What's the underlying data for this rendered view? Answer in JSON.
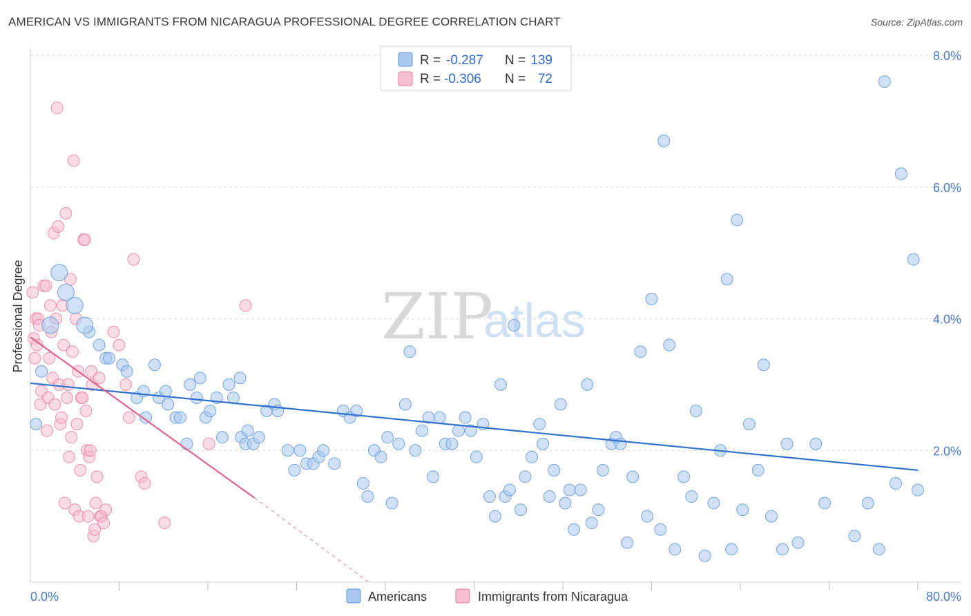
{
  "title": "AMERICAN VS IMMIGRANTS FROM NICARAGUA PROFESSIONAL DEGREE CORRELATION CHART",
  "source": "Source: ZipAtlas.com",
  "watermark": {
    "zip": "ZIP",
    "atlas": "atlas"
  },
  "legend": {
    "rows": [
      {
        "r_label": "R =",
        "r_value": "-0.287",
        "n_label": "N =",
        "n_value": "139"
      },
      {
        "r_label": "R =",
        "r_value": "-0.306",
        "n_label": "N =",
        "n_value": "72"
      }
    ]
  },
  "bottom_legend": [
    "Americans",
    "Immigrants from Nicaragua"
  ],
  "colors": {
    "americans_fill": "#a9c8ee",
    "americans_stroke": "#5f95d8",
    "americans_line": "#2f6fcf",
    "nicaragua_fill": "#f6bfd0",
    "nicaragua_stroke": "#e8799c",
    "nicaragua_line": "#e0628f",
    "grid": "#d9d9d9",
    "tick_text": "#4a7cc9"
  },
  "chart_data": {
    "type": "scatter",
    "title": "AMERICAN VS IMMIGRANTS FROM NICARAGUA PROFESSIONAL DEGREE CORRELATION CHART",
    "xlabel": "",
    "ylabel": "Professional Degree",
    "xlim": [
      0,
      80
    ],
    "ylim": [
      0,
      8
    ],
    "x_tick_labels": [
      "0.0%",
      "80.0%"
    ],
    "y_ticks": [
      2,
      4,
      6,
      8
    ],
    "y_tick_labels": [
      "2.0%",
      "4.0%",
      "6.0%",
      "8.0%"
    ],
    "grid": true,
    "series": [
      {
        "name": "Americans",
        "r": -0.287,
        "n": 139,
        "trend": {
          "x": [
            0,
            80
          ],
          "y": [
            3.02,
            1.7
          ]
        },
        "points": [
          [
            0.5,
            2.4
          ],
          [
            1.0,
            3.2
          ],
          [
            1.8,
            3.9
          ],
          [
            2.6,
            4.7
          ],
          [
            3.2,
            4.4
          ],
          [
            4.0,
            4.2
          ],
          [
            5.3,
            3.8
          ],
          [
            6.2,
            3.6
          ],
          [
            6.8,
            3.4
          ],
          [
            4.9,
            3.9
          ],
          [
            7.1,
            3.4
          ],
          [
            8.3,
            3.3
          ],
          [
            8.7,
            3.2
          ],
          [
            9.6,
            2.8
          ],
          [
            10.2,
            2.9
          ],
          [
            10.4,
            2.5
          ],
          [
            11.2,
            3.3
          ],
          [
            11.6,
            2.8
          ],
          [
            12.2,
            2.9
          ],
          [
            12.4,
            2.7
          ],
          [
            13.1,
            2.5
          ],
          [
            13.5,
            2.5
          ],
          [
            14.1,
            2.1
          ],
          [
            14.4,
            3.0
          ],
          [
            15.0,
            2.8
          ],
          [
            15.3,
            3.1
          ],
          [
            15.8,
            2.5
          ],
          [
            16.2,
            2.6
          ],
          [
            16.8,
            2.8
          ],
          [
            17.3,
            2.2
          ],
          [
            17.9,
            3.0
          ],
          [
            18.3,
            2.8
          ],
          [
            18.9,
            3.1
          ],
          [
            19.0,
            2.2
          ],
          [
            19.4,
            2.1
          ],
          [
            19.6,
            2.3
          ],
          [
            20.1,
            2.1
          ],
          [
            20.6,
            2.2
          ],
          [
            21.3,
            2.6
          ],
          [
            22.0,
            2.7
          ],
          [
            22.3,
            2.6
          ],
          [
            23.2,
            2.0
          ],
          [
            23.8,
            1.7
          ],
          [
            24.3,
            2.0
          ],
          [
            24.9,
            1.8
          ],
          [
            25.5,
            1.8
          ],
          [
            26.0,
            1.9
          ],
          [
            26.4,
            2.0
          ],
          [
            27.4,
            1.8
          ],
          [
            28.2,
            2.6
          ],
          [
            28.8,
            2.5
          ],
          [
            29.4,
            2.6
          ],
          [
            30.0,
            1.5
          ],
          [
            30.4,
            1.3
          ],
          [
            31.0,
            2.0
          ],
          [
            31.6,
            1.9
          ],
          [
            32.2,
            2.2
          ],
          [
            32.6,
            1.2
          ],
          [
            33.2,
            2.1
          ],
          [
            33.8,
            2.7
          ],
          [
            34.2,
            3.5
          ],
          [
            34.7,
            2.0
          ],
          [
            35.3,
            2.3
          ],
          [
            35.9,
            2.5
          ],
          [
            36.3,
            1.6
          ],
          [
            36.9,
            2.5
          ],
          [
            37.4,
            2.1
          ],
          [
            38.0,
            2.1
          ],
          [
            38.6,
            2.3
          ],
          [
            39.2,
            2.5
          ],
          [
            39.7,
            2.3
          ],
          [
            40.2,
            1.9
          ],
          [
            40.8,
            2.4
          ],
          [
            41.4,
            1.3
          ],
          [
            41.9,
            1.0
          ],
          [
            42.4,
            3.0
          ],
          [
            42.8,
            1.3
          ],
          [
            43.2,
            1.4
          ],
          [
            43.6,
            3.9
          ],
          [
            44.2,
            1.1
          ],
          [
            44.6,
            1.6
          ],
          [
            45.2,
            1.9
          ],
          [
            45.9,
            2.4
          ],
          [
            46.2,
            2.1
          ],
          [
            46.8,
            1.3
          ],
          [
            47.2,
            1.7
          ],
          [
            47.8,
            2.7
          ],
          [
            48.2,
            1.2
          ],
          [
            48.6,
            1.4
          ],
          [
            49.0,
            0.8
          ],
          [
            49.6,
            1.4
          ],
          [
            50.2,
            3.0
          ],
          [
            50.6,
            0.9
          ],
          [
            51.2,
            1.1
          ],
          [
            51.6,
            1.7
          ],
          [
            52.4,
            2.1
          ],
          [
            52.8,
            2.2
          ],
          [
            53.2,
            2.1
          ],
          [
            53.8,
            0.6
          ],
          [
            54.3,
            1.6
          ],
          [
            55.0,
            3.5
          ],
          [
            55.6,
            1.0
          ],
          [
            56.0,
            4.3
          ],
          [
            56.8,
            0.8
          ],
          [
            57.1,
            6.7
          ],
          [
            57.6,
            3.6
          ],
          [
            58.1,
            0.5
          ],
          [
            58.9,
            1.6
          ],
          [
            59.6,
            1.3
          ],
          [
            60.0,
            2.6
          ],
          [
            60.8,
            0.4
          ],
          [
            61.6,
            1.2
          ],
          [
            62.2,
            2.0
          ],
          [
            62.8,
            4.6
          ],
          [
            63.2,
            0.5
          ],
          [
            63.7,
            5.5
          ],
          [
            64.2,
            1.1
          ],
          [
            64.8,
            2.4
          ],
          [
            65.6,
            1.7
          ],
          [
            66.1,
            3.3
          ],
          [
            66.8,
            1.0
          ],
          [
            67.8,
            0.5
          ],
          [
            68.2,
            2.1
          ],
          [
            69.2,
            0.6
          ],
          [
            70.8,
            2.1
          ],
          [
            71.6,
            1.2
          ],
          [
            74.3,
            0.7
          ],
          [
            75.5,
            1.2
          ],
          [
            76.5,
            0.5
          ],
          [
            77.0,
            7.6
          ],
          [
            78.0,
            1.5
          ],
          [
            78.5,
            6.2
          ],
          [
            79.6,
            4.9
          ],
          [
            80.0,
            1.4
          ]
        ]
      },
      {
        "name": "Immigrants from Nicaragua",
        "r": -0.306,
        "n": 72,
        "trend": {
          "x": [
            0,
            20.2
          ],
          "y": [
            3.72,
            1.28
          ]
        },
        "trend_dashed": {
          "x": [
            20.2,
            30.5
          ],
          "y": [
            1.28,
            0.0
          ]
        },
        "points": [
          [
            0.2,
            4.4
          ],
          [
            0.3,
            3.7
          ],
          [
            0.4,
            3.4
          ],
          [
            0.5,
            4.0
          ],
          [
            0.6,
            3.6
          ],
          [
            0.7,
            4.0
          ],
          [
            0.8,
            3.9
          ],
          [
            0.9,
            2.7
          ],
          [
            1.0,
            2.9
          ],
          [
            1.2,
            4.5
          ],
          [
            1.4,
            4.5
          ],
          [
            1.5,
            2.3
          ],
          [
            1.6,
            2.8
          ],
          [
            1.7,
            3.4
          ],
          [
            1.8,
            4.2
          ],
          [
            1.9,
            3.8
          ],
          [
            2.0,
            3.1
          ],
          [
            2.1,
            5.3
          ],
          [
            2.2,
            2.7
          ],
          [
            2.3,
            4.0
          ],
          [
            2.4,
            7.2
          ],
          [
            2.5,
            5.4
          ],
          [
            2.6,
            3.0
          ],
          [
            2.7,
            2.4
          ],
          [
            2.8,
            2.5
          ],
          [
            2.9,
            4.2
          ],
          [
            3.0,
            3.6
          ],
          [
            3.1,
            1.2
          ],
          [
            3.2,
            5.6
          ],
          [
            3.3,
            2.8
          ],
          [
            3.4,
            3.0
          ],
          [
            3.5,
            1.9
          ],
          [
            3.6,
            4.6
          ],
          [
            3.7,
            2.2
          ],
          [
            3.8,
            3.5
          ],
          [
            3.9,
            6.4
          ],
          [
            4.0,
            1.1
          ],
          [
            4.1,
            4.0
          ],
          [
            4.2,
            2.4
          ],
          [
            4.3,
            3.2
          ],
          [
            4.4,
            1.0
          ],
          [
            4.5,
            1.7
          ],
          [
            4.6,
            2.8
          ],
          [
            4.7,
            2.8
          ],
          [
            4.8,
            5.2
          ],
          [
            4.9,
            5.2
          ],
          [
            5.0,
            2.6
          ],
          [
            5.1,
            2.0
          ],
          [
            5.2,
            1.0
          ],
          [
            5.3,
            1.9
          ],
          [
            5.4,
            2.0
          ],
          [
            5.5,
            3.2
          ],
          [
            5.6,
            3.0
          ],
          [
            5.7,
            0.7
          ],
          [
            5.8,
            0.8
          ],
          [
            5.9,
            1.2
          ],
          [
            6.0,
            1.6
          ],
          [
            6.2,
            3.1
          ],
          [
            6.3,
            1.0
          ],
          [
            6.4,
            1.0
          ],
          [
            6.6,
            0.9
          ],
          [
            6.8,
            1.1
          ],
          [
            7.5,
            3.8
          ],
          [
            8.0,
            3.6
          ],
          [
            8.6,
            3.0
          ],
          [
            8.9,
            2.5
          ],
          [
            9.3,
            4.9
          ],
          [
            10.0,
            1.6
          ],
          [
            10.3,
            1.5
          ],
          [
            12.1,
            0.9
          ],
          [
            16.1,
            2.1
          ],
          [
            19.4,
            4.2
          ]
        ]
      }
    ]
  }
}
